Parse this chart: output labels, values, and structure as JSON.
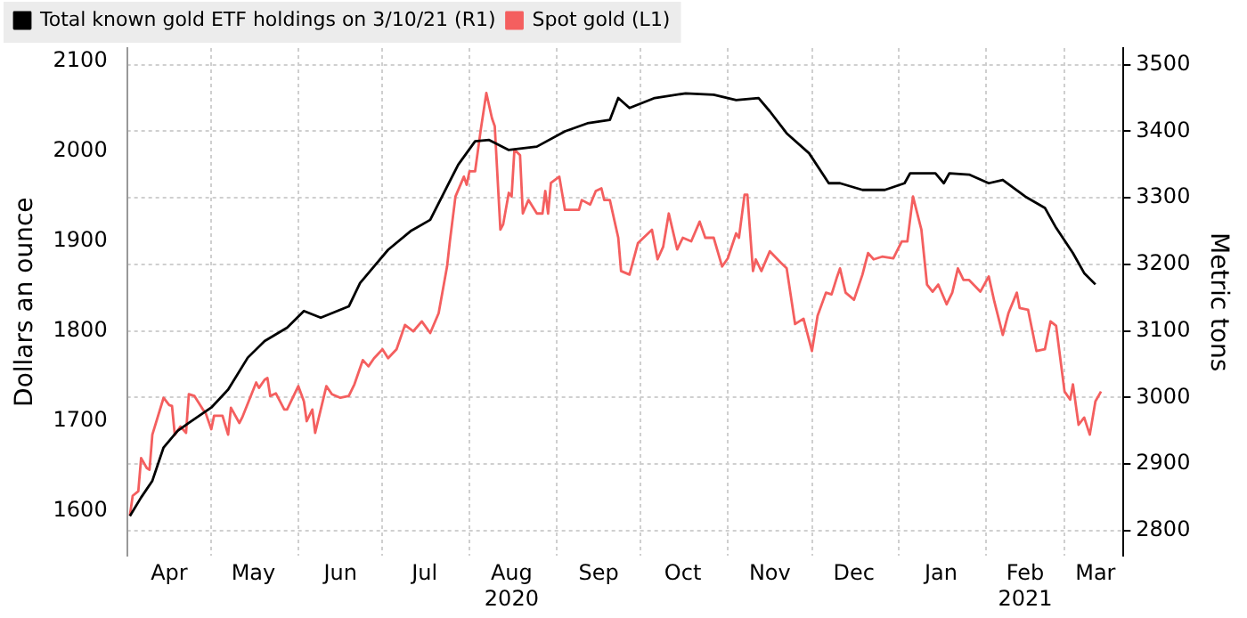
{
  "chart_data": {
    "type": "line",
    "ylabel": "Dollars an ounce",
    "y2label": "Metric tons",
    "xlim": [
      "2020-04-01",
      "2021-03-22"
    ],
    "xticks": [
      {
        "value": "2020-04-01",
        "label": null
      },
      {
        "value": "2020-04-16",
        "label": "Apr"
      },
      {
        "value": "2020-05-01",
        "label": null
      },
      {
        "value": "2020-05-16",
        "label": "May"
      },
      {
        "value": "2020-06-01",
        "label": null
      },
      {
        "value": "2020-06-16",
        "label": "Jun"
      },
      {
        "value": "2020-07-01",
        "label": null
      },
      {
        "value": "2020-07-16",
        "label": "Jul"
      },
      {
        "value": "2020-08-01",
        "label": null
      },
      {
        "value": "2020-08-16",
        "label": "Aug\n2020"
      },
      {
        "value": "2020-09-01",
        "label": null
      },
      {
        "value": "2020-09-16",
        "label": "Sep"
      },
      {
        "value": "2020-10-01",
        "label": null
      },
      {
        "value": "2020-10-16",
        "label": "Oct"
      },
      {
        "value": "2020-11-01",
        "label": null
      },
      {
        "value": "2020-11-16",
        "label": "Nov"
      },
      {
        "value": "2020-12-01",
        "label": null
      },
      {
        "value": "2020-12-16",
        "label": "Dec"
      },
      {
        "value": "2021-01-01",
        "label": null
      },
      {
        "value": "2021-01-16",
        "label": "Jan"
      },
      {
        "value": "2021-02-01",
        "label": null
      },
      {
        "value": "2021-02-15",
        "label": "Feb\n2021"
      },
      {
        "value": "2021-03-01",
        "label": null
      },
      {
        "value": "2021-03-12",
        "label": "Mar"
      }
    ],
    "ylim": [
      1550,
      2115
    ],
    "yticks": [
      1600,
      1700,
      1800,
      1900,
      2000,
      2100
    ],
    "y2lim": [
      2762,
      3525
    ],
    "y2ticks": [
      2800,
      2900,
      3000,
      3100,
      3200,
      3300,
      3400,
      3500
    ],
    "grid": true,
    "legend": "top left",
    "marker": "none",
    "line_style": "solid",
    "series": [
      {
        "name": "Total known gold ETF holdings on 3/10/21 (R1)",
        "color": "#000000",
        "axis": "y2",
        "x": [
          "2020-04-02",
          "2020-04-06",
          "2020-04-10",
          "2020-04-14",
          "2020-04-19",
          "2020-04-23",
          "2020-05-01",
          "2020-05-07",
          "2020-05-14",
          "2020-05-20",
          "2020-05-28",
          "2020-06-03",
          "2020-06-09",
          "2020-06-19",
          "2020-06-23",
          "2020-06-27",
          "2020-07-03",
          "2020-07-11",
          "2020-07-18",
          "2020-07-28",
          "2020-08-03",
          "2020-08-08",
          "2020-08-15",
          "2020-08-25",
          "2020-09-04",
          "2020-09-12",
          "2020-09-20",
          "2020-09-23",
          "2020-09-27",
          "2020-10-06",
          "2020-10-17",
          "2020-10-27",
          "2020-11-04",
          "2020-11-12",
          "2020-11-16",
          "2020-11-22",
          "2020-11-30",
          "2020-12-07",
          "2020-12-11",
          "2020-12-19",
          "2020-12-27",
          "2021-01-03",
          "2021-01-05",
          "2021-01-14",
          "2021-01-17",
          "2021-01-19",
          "2021-01-26",
          "2021-02-02",
          "2021-02-07",
          "2021-02-15",
          "2021-02-22",
          "2021-02-26",
          "2021-03-04",
          "2021-03-08",
          "2021-03-12"
        ],
        "values": [
          2822,
          2850,
          2875,
          2925,
          2950,
          2962,
          2985,
          3012,
          3060,
          3085,
          3105,
          3130,
          3120,
          3137,
          3172,
          3192,
          3222,
          3250,
          3267,
          3350,
          3385,
          3387,
          3372,
          3377,
          3400,
          3412,
          3417,
          3450,
          3435,
          3450,
          3457,
          3455,
          3447,
          3450,
          3430,
          3397,
          3367,
          3322,
          3322,
          3312,
          3312,
          3322,
          3337,
          3337,
          3322,
          3337,
          3335,
          3322,
          3327,
          3302,
          3285,
          3255,
          3217,
          3187,
          3170
        ]
      },
      {
        "name": "Spot gold (L1)",
        "color": "#f45f5f",
        "x": [
          "2020-04-02",
          "2020-04-03",
          "2020-04-05",
          "2020-04-06",
          "2020-04-08",
          "2020-04-09",
          "2020-04-10",
          "2020-04-14",
          "2020-04-16",
          "2020-04-17",
          "2020-04-18",
          "2020-04-20",
          "2020-04-22",
          "2020-04-23",
          "2020-04-25",
          "2020-04-28",
          "2020-04-29",
          "2020-05-01",
          "2020-05-02",
          "2020-05-05",
          "2020-05-07",
          "2020-05-08",
          "2020-05-11",
          "2020-05-12",
          "2020-05-17",
          "2020-05-18",
          "2020-05-20",
          "2020-05-21",
          "2020-05-22",
          "2020-05-24",
          "2020-05-27",
          "2020-05-28",
          "2020-06-01",
          "2020-06-03",
          "2020-06-04",
          "2020-06-06",
          "2020-06-07",
          "2020-06-11",
          "2020-06-13",
          "2020-06-16",
          "2020-06-19",
          "2020-06-21",
          "2020-06-24",
          "2020-06-26",
          "2020-06-28",
          "2020-07-01",
          "2020-07-03",
          "2020-07-06",
          "2020-07-09",
          "2020-07-12",
          "2020-07-15",
          "2020-07-18",
          "2020-07-21",
          "2020-07-24",
          "2020-07-25",
          "2020-07-27",
          "2020-07-30",
          "2020-07-31",
          "2020-08-01",
          "2020-08-03",
          "2020-08-05",
          "2020-08-07",
          "2020-08-09",
          "2020-08-10",
          "2020-08-12",
          "2020-08-13",
          "2020-08-15",
          "2020-08-16",
          "2020-08-17",
          "2020-08-19",
          "2020-08-20",
          "2020-08-22",
          "2020-08-25",
          "2020-08-27",
          "2020-08-28",
          "2020-08-29",
          "2020-08-30",
          "2020-09-02",
          "2020-09-04",
          "2020-09-09",
          "2020-09-10",
          "2020-09-13",
          "2020-09-15",
          "2020-09-17",
          "2020-09-18",
          "2020-09-20",
          "2020-09-23",
          "2020-09-24",
          "2020-09-27",
          "2020-09-30",
          "2020-10-03",
          "2020-10-05",
          "2020-10-07",
          "2020-10-09",
          "2020-10-11",
          "2020-10-14",
          "2020-10-16",
          "2020-10-19",
          "2020-10-22",
          "2020-10-24",
          "2020-10-27",
          "2020-10-30",
          "2020-11-01",
          "2020-11-04",
          "2020-11-05",
          "2020-11-07",
          "2020-11-08",
          "2020-11-10",
          "2020-11-11",
          "2020-11-13",
          "2020-11-16",
          "2020-11-20",
          "2020-11-22",
          "2020-11-25",
          "2020-11-28",
          "2020-12-01",
          "2020-12-03",
          "2020-12-06",
          "2020-12-08",
          "2020-12-10",
          "2020-12-11",
          "2020-12-13",
          "2020-12-16",
          "2020-12-19",
          "2020-12-21",
          "2020-12-23",
          "2020-12-26",
          "2020-12-30",
          "2021-01-02",
          "2021-01-04",
          "2021-01-06",
          "2021-01-09",
          "2021-01-11",
          "2021-01-13",
          "2021-01-15",
          "2021-01-18",
          "2021-01-20",
          "2021-01-22",
          "2021-01-24",
          "2021-01-26",
          "2021-01-30",
          "2021-02-02",
          "2021-02-04",
          "2021-02-07",
          "2021-02-09",
          "2021-02-12",
          "2021-02-13",
          "2021-02-16",
          "2021-02-19",
          "2021-02-22",
          "2021-02-24",
          "2021-02-26",
          "2021-03-01",
          "2021-03-03",
          "2021-03-04",
          "2021-03-06",
          "2021-03-08",
          "2021-03-10",
          "2021-03-12",
          "2021-03-14"
        ],
        "values": [
          1595,
          1617,
          1622,
          1659,
          1648,
          1646,
          1685,
          1726,
          1718,
          1717,
          1685,
          1694,
          1687,
          1730,
          1728,
          1713,
          1709,
          1691,
          1706,
          1706,
          1685,
          1715,
          1698,
          1704,
          1743,
          1737,
          1746,
          1748,
          1728,
          1731,
          1713,
          1713,
          1739,
          1722,
          1700,
          1713,
          1687,
          1739,
          1730,
          1726,
          1728,
          1741,
          1768,
          1761,
          1770,
          1780,
          1770,
          1780,
          1807,
          1800,
          1811,
          1798,
          1820,
          1872,
          1900,
          1950,
          1972,
          1963,
          1978,
          1978,
          2024,
          2065,
          2037,
          2028,
          1913,
          1919,
          1954,
          1950,
          2002,
          1996,
          1931,
          1946,
          1931,
          1931,
          1956,
          1931,
          1965,
          1972,
          1935,
          1935,
          1946,
          1941,
          1956,
          1959,
          1946,
          1946,
          1904,
          1867,
          1863,
          1898,
          1907,
          1913,
          1880,
          1894,
          1931,
          1891,
          1904,
          1900,
          1922,
          1904,
          1904,
          1872,
          1881,
          1909,
          1904,
          1952,
          1952,
          1867,
          1880,
          1867,
          1889,
          1876,
          1870,
          1808,
          1814,
          1778,
          1817,
          1843,
          1841,
          1861,
          1870,
          1843,
          1835,
          1863,
          1887,
          1880,
          1883,
          1881,
          1900,
          1900,
          1950,
          1913,
          1852,
          1844,
          1852,
          1830,
          1843,
          1870,
          1857,
          1857,
          1844,
          1861,
          1833,
          1796,
          1820,
          1843,
          1826,
          1824,
          1778,
          1780,
          1811,
          1806,
          1733,
          1724,
          1741,
          1696,
          1704,
          1685,
          1722,
          1733
        ]
      }
    ]
  }
}
